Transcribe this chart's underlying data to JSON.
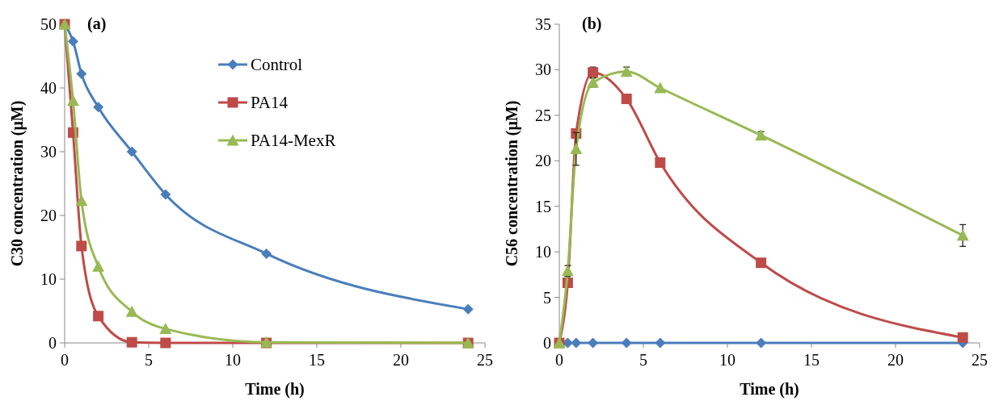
{
  "chart_data": [
    {
      "type": "line",
      "title": "(a)",
      "xlabel": "Time (h)",
      "ylabel": "C30 concentration (μM)",
      "xlim": [
        0,
        25
      ],
      "xticks": [
        0,
        5,
        10,
        15,
        20,
        25
      ],
      "ylim": [
        0,
        50
      ],
      "yticks": [
        0,
        10,
        20,
        30,
        40,
        50
      ],
      "grid": false,
      "legend": "top",
      "x": [
        0,
        0.5,
        1,
        2,
        4,
        6,
        12,
        24
      ],
      "series": [
        {
          "name": "Control",
          "color": "#4a7ebb",
          "marker": "diamond",
          "values": [
            50,
            47.3,
            42.2,
            37,
            30,
            23.3,
            14,
            5.3
          ]
        },
        {
          "name": "PA14",
          "color": "#be4b48",
          "marker": "square",
          "values": [
            50,
            33,
            15.2,
            4.2,
            0.1,
            0,
            0,
            0
          ]
        },
        {
          "name": "PA14-MexR",
          "color": "#98b954",
          "marker": "triangle",
          "values": [
            50,
            38,
            22.3,
            12,
            4.9,
            2.2,
            0.1,
            0
          ]
        }
      ]
    },
    {
      "type": "line",
      "title": "(b)",
      "xlabel": "Time (h)",
      "ylabel": "C56 concentration (μM)",
      "xlim": [
        0,
        25
      ],
      "xticks": [
        0,
        5,
        10,
        15,
        20,
        25
      ],
      "ylim": [
        0,
        35
      ],
      "yticks": [
        0,
        5,
        10,
        15,
        20,
        25,
        30,
        35
      ],
      "grid": false,
      "legend": false,
      "x": [
        0,
        0.5,
        1,
        2,
        4,
        6,
        12,
        24
      ],
      "series": [
        {
          "color": "#4a7ebb",
          "marker": "diamond",
          "values": [
            0,
            0,
            0,
            0,
            0,
            0,
            0,
            0
          ]
        },
        {
          "color": "#be4b48",
          "marker": "square",
          "values": [
            0,
            6.6,
            23,
            29.7,
            26.8,
            19.8,
            8.8,
            0.6
          ],
          "errors": [
            null,
            null,
            null,
            0.6,
            null,
            null,
            null,
            null
          ]
        },
        {
          "color": "#98b954",
          "marker": "triangle",
          "values": [
            0,
            7.9,
            21.3,
            28.6,
            29.8,
            28,
            22.8,
            11.8
          ],
          "errors": [
            null,
            0.6,
            1.8,
            0.5,
            0.5,
            null,
            0.4,
            1.2
          ]
        }
      ]
    }
  ]
}
